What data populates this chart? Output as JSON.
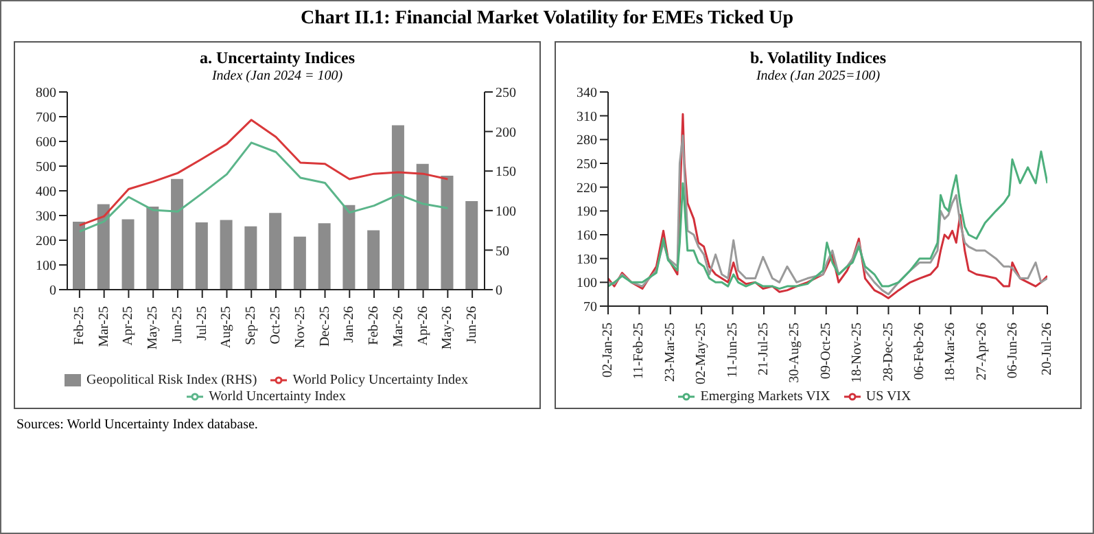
{
  "chart_data": [
    {
      "type": "line",
      "title": "a. Uncertainty Indices",
      "subtitle": "Index (Jan 2024 = 100)",
      "annotations": [
        "Chart II.1: Financial Market Volatility for EMEs Ticked Up",
        "Sources: World Uncertainty Index database."
      ],
      "categories": [
        "Feb-25",
        "Mar-25",
        "Apr-25",
        "May-25",
        "Jun-25",
        "Jul-25",
        "Aug-25",
        "Sep-25",
        "Oct-25",
        "Nov-25",
        "Dec-25",
        "Jan-26",
        "Feb-26",
        "Mar-26",
        "Apr-26",
        "May-26",
        "Jun-26"
      ],
      "series": [
        {
          "name": "Geopolitical Risk Index (RHS)",
          "type": "bar",
          "axis": "y2",
          "color": "#8c8c8c",
          "values": [
            86,
            108,
            89,
            105,
            140,
            85,
            88,
            80,
            97,
            67,
            84,
            107,
            75,
            208,
            159,
            144,
            112
          ]
        },
        {
          "name": "World Policy Uncertainty Index",
          "color": "#d9383a",
          "values": [
            260,
            297,
            407,
            437,
            472,
            530,
            590,
            687,
            618,
            514,
            509,
            447,
            469,
            475,
            469,
            447,
            null
          ]
        },
        {
          "name": "World Uncertainty Index",
          "color": "#5bb58a",
          "values": [
            235,
            276,
            375,
            322,
            316,
            390,
            467,
            595,
            557,
            453,
            432,
            312,
            340,
            385,
            347,
            330,
            null
          ]
        }
      ],
      "ylim": [
        0,
        800
      ],
      "yticks": [
        0,
        100,
        200,
        300,
        400,
        500,
        600,
        700,
        800
      ],
      "y2lim": [
        0,
        250
      ],
      "y2ticks": [
        0,
        50,
        100,
        150,
        200,
        250
      ],
      "legend": "bottom",
      "grid": false
    },
    {
      "type": "line",
      "title": "b. Volatility Indices",
      "subtitle": "Index (Jan 2025=100)",
      "x": [
        "2025-01-02",
        "2025-01-10",
        "2025-01-20",
        "2025-02-01",
        "2025-02-15",
        "2025-03-05",
        "2025-03-14",
        "2025-03-20",
        "2025-04-01",
        "2025-04-04",
        "2025-04-08",
        "2025-04-10",
        "2025-04-14",
        "2025-04-22",
        "2025-04-28",
        "2025-05-05",
        "2025-05-12",
        "2025-05-20",
        "2025-05-28",
        "2025-06-05",
        "2025-06-12",
        "2025-06-18",
        "2025-06-28",
        "2025-07-10",
        "2025-07-20",
        "2025-08-01",
        "2025-08-10",
        "2025-08-20",
        "2025-09-01",
        "2025-09-15",
        "2025-10-05",
        "2025-10-10",
        "2025-10-17",
        "2025-10-25",
        "2025-11-05",
        "2025-11-12",
        "2025-11-20",
        "2025-11-28",
        "2025-12-10",
        "2025-12-20",
        "2025-12-28",
        "2026-01-10",
        "2026-01-25",
        "2026-02-06",
        "2026-02-20",
        "2026-03-01",
        "2026-03-05",
        "2026-03-10",
        "2026-03-15",
        "2026-03-20",
        "2026-03-25",
        "2026-03-30",
        "2026-04-05",
        "2026-04-10",
        "2026-04-20",
        "2026-05-01",
        "2026-05-15",
        "2026-05-25",
        "2026-06-01",
        "2026-06-05",
        "2026-06-15",
        "2026-06-25",
        "2026-07-05",
        "2026-07-12",
        "2026-07-20"
      ],
      "series": [
        {
          "name": "US VIX",
          "color": "#d2303a",
          "values": [
            105,
            95,
            112,
            100,
            92,
            120,
            165,
            130,
            110,
            200,
            312,
            250,
            200,
            180,
            150,
            145,
            120,
            110,
            105,
            100,
            125,
            105,
            98,
            100,
            92,
            95,
            88,
            90,
            95,
            100,
            110,
            120,
            135,
            100,
            115,
            130,
            155,
            105,
            90,
            85,
            80,
            90,
            100,
            105,
            110,
            120,
            140,
            160,
            155,
            165,
            150,
            185,
            140,
            115,
            110,
            108,
            105,
            95,
            95,
            125,
            105,
            100,
            95,
            100,
            108
          ]
        },
        {
          "color": "#9a9a9a",
          "values": [
            100,
            98,
            110,
            100,
            95,
            115,
            150,
            130,
            120,
            250,
            285,
            240,
            165,
            160,
            145,
            135,
            110,
            135,
            110,
            105,
            153,
            115,
            105,
            105,
            132,
            105,
            100,
            120,
            100,
            105,
            110,
            125,
            140,
            110,
            120,
            130,
            150,
            115,
            100,
            90,
            85,
            100,
            115,
            125,
            125,
            140,
            190,
            180,
            185,
            200,
            210,
            175,
            150,
            145,
            140,
            140,
            130,
            120,
            120,
            118,
            105,
            105,
            125,
            100,
            105
          ]
        },
        {
          "name": "Emerging Markets VIX",
          "color": "#4daf7c",
          "values": [
            95,
            100,
            108,
            100,
            100,
            112,
            155,
            128,
            115,
            150,
            225,
            200,
            140,
            140,
            125,
            120,
            105,
            100,
            100,
            95,
            110,
            100,
            95,
            100,
            95,
            95,
            92,
            95,
            95,
            98,
            115,
            150,
            125,
            110,
            120,
            125,
            145,
            120,
            110,
            95,
            95,
            100,
            115,
            130,
            130,
            150,
            210,
            195,
            190,
            215,
            235,
            200,
            170,
            160,
            155,
            175,
            190,
            200,
            210,
            255,
            225,
            245,
            225,
            265,
            225
          ]
        }
      ],
      "xlim": [
        "2025-01-02",
        "2026-07-20"
      ],
      "xticks": [
        {
          "value": "2025-01-02",
          "label": "02-Jan-25"
        },
        {
          "value": "2025-02-11",
          "label": "11-Feb-25"
        },
        {
          "value": "2025-03-23",
          "label": "23-Mar-25"
        },
        {
          "value": "2025-05-02",
          "label": "02-May-25"
        },
        {
          "value": "2025-06-11",
          "label": "11-Jun-25"
        },
        {
          "value": "2025-07-21",
          "label": "21-Jul-25"
        },
        {
          "value": "2025-08-30",
          "label": "30-Aug-25"
        },
        {
          "value": "2025-10-09",
          "label": "09-Oct-25"
        },
        {
          "value": "2025-11-18",
          "label": "18-Nov-25"
        },
        {
          "value": "2025-12-28",
          "label": "28-Dec-25"
        },
        {
          "value": "2026-02-06",
          "label": "06-Feb-26"
        },
        {
          "value": "2026-03-18",
          "label": "18-Mar-26"
        },
        {
          "value": "2026-04-27",
          "label": "27-Apr-26"
        },
        {
          "value": "2026-06-06",
          "label": "06-Jun-26"
        },
        {
          "value": "2026-07-20",
          "label": "20-Jul-26"
        }
      ],
      "ylim": [
        70,
        340
      ],
      "yticks": [
        70,
        100,
        130,
        160,
        190,
        220,
        250,
        280,
        310,
        340
      ],
      "legend": "bottom",
      "grid": false
    }
  ]
}
